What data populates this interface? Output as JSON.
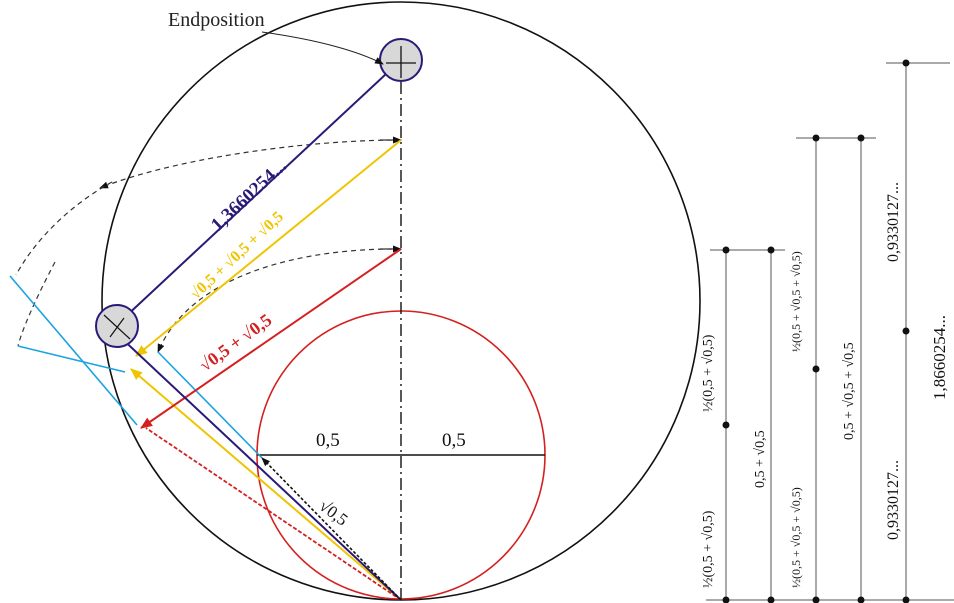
{
  "labels": {
    "endposition": "Endposition",
    "long_arrow": "1,3660254...",
    "yellow_arrow": "√0,5 + √0,5 + √0,5",
    "red_arrow": "√0,5 + √0,5",
    "root_half": "√0,5",
    "half_left": "0,5",
    "half_right": "0,5"
  },
  "dimensions": {
    "col1_top": "½(0,5 + √0,5)",
    "col1_bottom": "½(0,5 + √0,5)",
    "col2": "0,5 + √0,5",
    "col3_top": "½(0,5 + √0,5 + √0,5)",
    "col3_bottom": "½(0,5 + √0,5 + √0,5)",
    "col4": "0,5 + √0,5 + √0,5",
    "col5_top": "0,9330127...",
    "col5_bottom": "0,9330127...",
    "col6": "1,8660254..."
  },
  "colors": {
    "outline": "#111111",
    "navy": "#2a1a78",
    "yellow": "#f0c400",
    "red": "#d42020",
    "cyan": "#1aa3e0",
    "dashed": "#333333",
    "disc": "#d8d8d8",
    "dim": "#555555"
  }
}
